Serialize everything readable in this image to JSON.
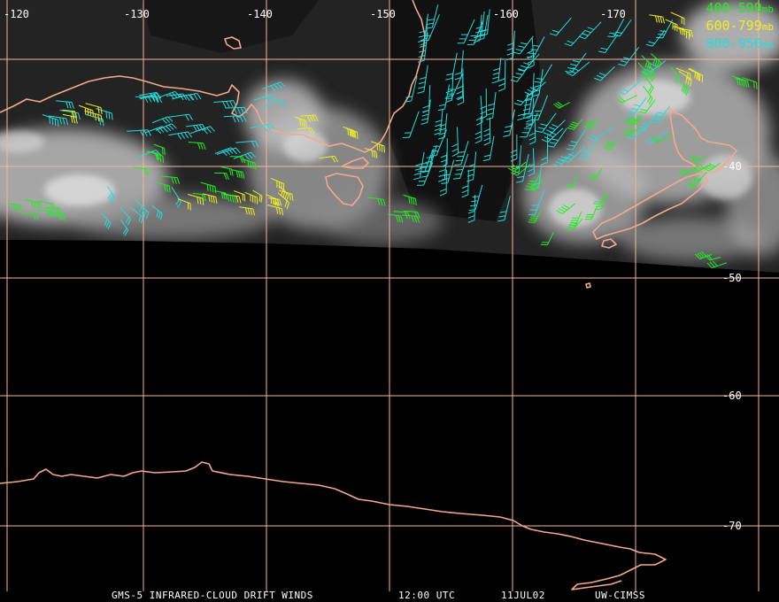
{
  "map": {
    "longitude_labels": [
      "-120",
      "-130",
      "-140",
      "-150",
      "-160",
      "-170"
    ],
    "latitude_labels": [
      "-40",
      "-50",
      "-60",
      "-70"
    ],
    "colors": {
      "grid": "#f4b79a",
      "coast": "#f4a98c",
      "space": "#000000",
      "level_400_599": "#22ee22",
      "level_600_799": "#eeee22",
      "level_800_950": "#22dddd"
    }
  },
  "legend": [
    {
      "range": "400-599",
      "unit": "mb",
      "color": "#22ee22"
    },
    {
      "range": "600-799",
      "unit": "mb",
      "color": "#eeee22"
    },
    {
      "range": "800-950",
      "unit": "mb",
      "color": "#22dddd"
    }
  ],
  "footer": {
    "product": "GMS-5 INFRARED-CLOUD DRIFT WINDS",
    "time": "12:00 UTC",
    "date": "11JUL02",
    "credit": "UW-CIMSS"
  }
}
